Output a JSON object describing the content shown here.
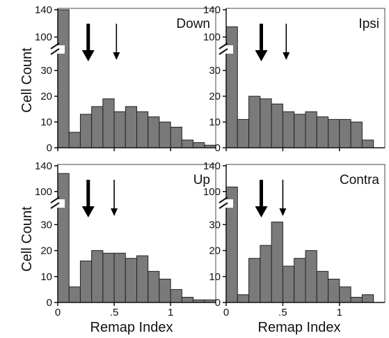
{
  "axis_labels": {
    "y": "Cell Count",
    "x": "Remap Index"
  },
  "chart_data": [
    {
      "type": "bar",
      "panel_label": "Down",
      "x_tick_labels": [
        "0",
        ".5",
        "1"
      ],
      "y_tick_labels_upper": [
        "100",
        "140"
      ],
      "y_tick_labels_lower": [
        "0",
        "10",
        "20",
        "30"
      ],
      "ylim_lower": [
        0,
        36
      ],
      "ylim_upper": [
        90,
        142
      ],
      "broken_axis": true,
      "bin_width": 0.1,
      "bin_starts": [
        0,
        0.1,
        0.2,
        0.3,
        0.4,
        0.5,
        0.6,
        0.7,
        0.8,
        0.9,
        1.0,
        1.1,
        1.2,
        1.3
      ],
      "values": [
        140,
        6,
        13,
        16,
        19,
        14,
        16,
        14,
        12,
        10,
        8,
        3,
        2,
        1
      ],
      "arrows": [
        {
          "kind": "thick",
          "x": 0.27
        },
        {
          "kind": "thin",
          "x": 0.52
        }
      ]
    },
    {
      "type": "bar",
      "panel_label": "Ipsi",
      "x_tick_labels": [
        "0",
        ".5",
        "1"
      ],
      "y_tick_labels_upper": [
        "100",
        "140"
      ],
      "y_tick_labels_lower": [
        "0",
        "10",
        "20",
        "30"
      ],
      "ylim_lower": [
        0,
        36
      ],
      "ylim_upper": [
        90,
        142
      ],
      "broken_axis": true,
      "bin_width": 0.1,
      "bin_starts": [
        0,
        0.1,
        0.2,
        0.3,
        0.4,
        0.5,
        0.6,
        0.7,
        0.8,
        0.9,
        1.0,
        1.1,
        1.2
      ],
      "values": [
        115,
        11,
        20,
        19,
        17,
        14,
        13,
        14,
        12,
        11,
        11,
        10,
        3
      ],
      "arrows": [
        {
          "kind": "thick",
          "x": 0.31
        },
        {
          "kind": "thin",
          "x": 0.53
        }
      ]
    },
    {
      "type": "bar",
      "panel_label": "Up",
      "x_tick_labels": [
        "0",
        ".5",
        "1"
      ],
      "y_tick_labels_upper": [
        "100",
        "140"
      ],
      "y_tick_labels_lower": [
        "0",
        "10",
        "20",
        "30"
      ],
      "ylim_lower": [
        0,
        36
      ],
      "ylim_upper": [
        90,
        142
      ],
      "broken_axis": true,
      "bin_width": 0.1,
      "bin_starts": [
        0,
        0.1,
        0.2,
        0.3,
        0.4,
        0.5,
        0.6,
        0.7,
        0.8,
        0.9,
        1.0,
        1.1,
        1.2,
        1.3
      ],
      "values": [
        128,
        6,
        16,
        20,
        19,
        19,
        17,
        18,
        12,
        9,
        5,
        2,
        1,
        1
      ],
      "arrows": [
        {
          "kind": "thick",
          "x": 0.27
        },
        {
          "kind": "thin",
          "x": 0.5
        }
      ]
    },
    {
      "type": "bar",
      "panel_label": "Contra",
      "x_tick_labels": [
        "0",
        ".5",
        "1"
      ],
      "y_tick_labels_upper": [
        "100",
        "140"
      ],
      "y_tick_labels_lower": [
        "0",
        "10",
        "20",
        "30"
      ],
      "ylim_lower": [
        0,
        36
      ],
      "ylim_upper": [
        90,
        142
      ],
      "broken_axis": true,
      "bin_width": 0.1,
      "bin_starts": [
        0,
        0.1,
        0.2,
        0.3,
        0.4,
        0.5,
        0.6,
        0.7,
        0.8,
        0.9,
        1.0,
        1.1,
        1.2
      ],
      "values": [
        107,
        3,
        17,
        22,
        31,
        14,
        17,
        20,
        12,
        9,
        6,
        2,
        3
      ],
      "arrows": [
        {
          "kind": "thick",
          "x": 0.31
        },
        {
          "kind": "thin",
          "x": 0.5
        }
      ]
    }
  ]
}
